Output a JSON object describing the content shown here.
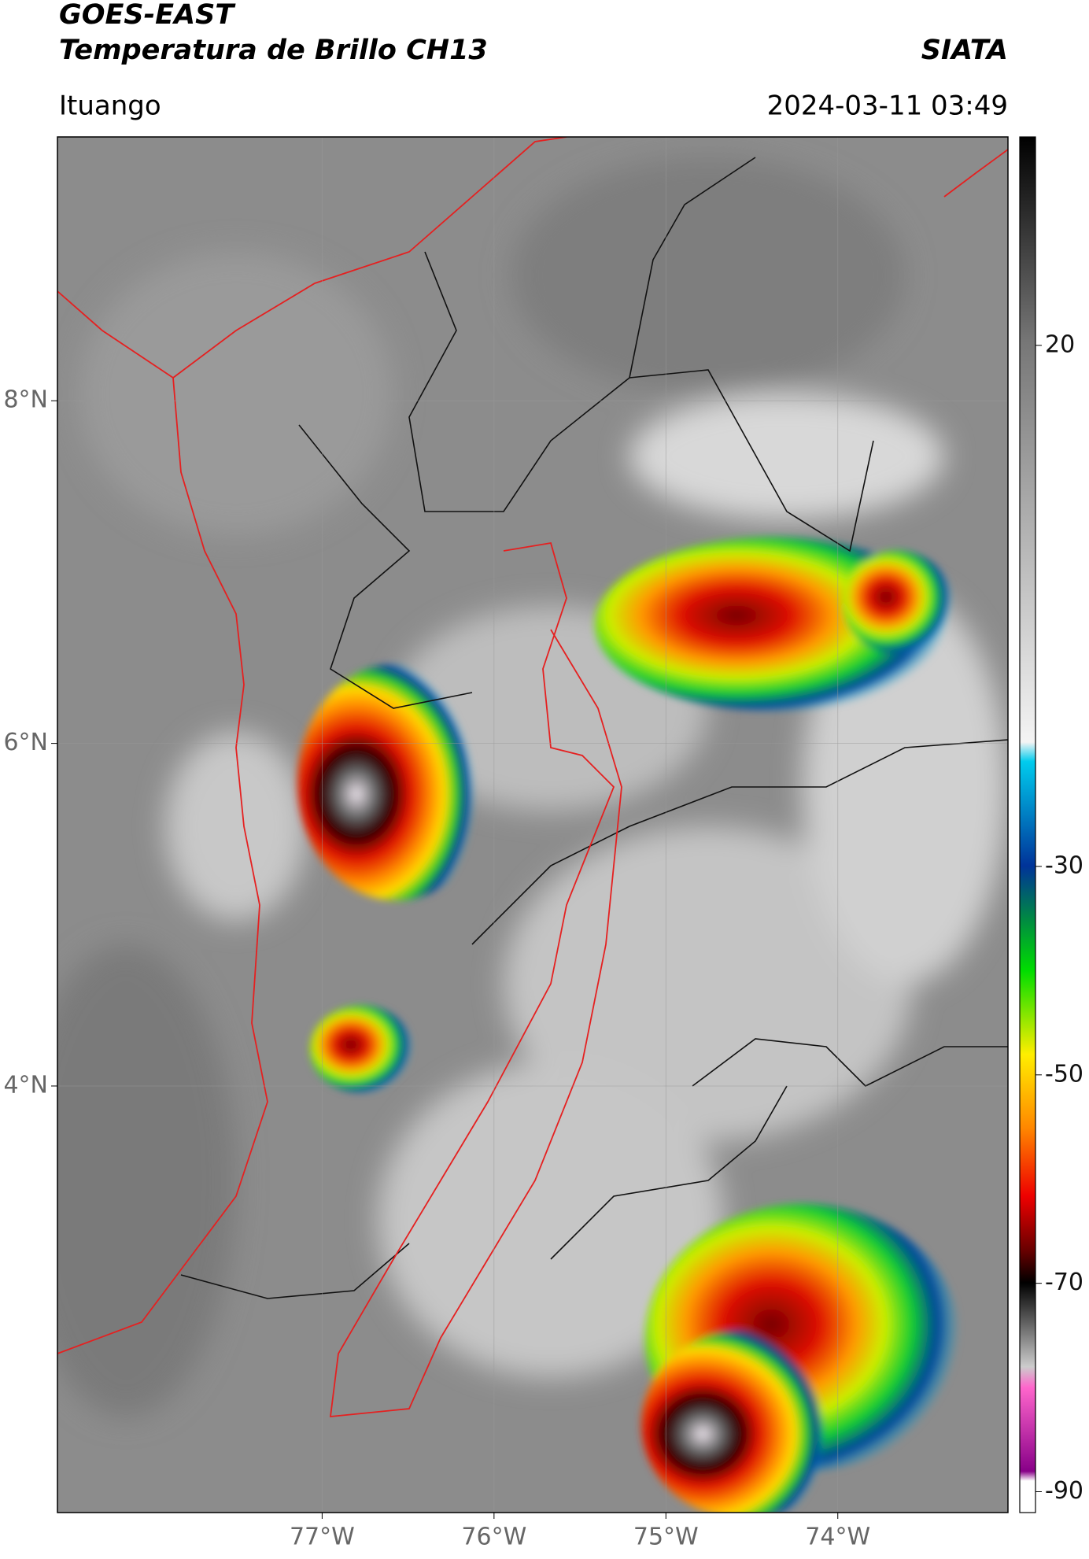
{
  "header": {
    "title": "GOES-EAST",
    "subtitle": "Temperatura de Brillo CH13",
    "source": "SIATA",
    "location": "Ituango",
    "datetime": "2024-03-11 03:49"
  },
  "map": {
    "xlim": [
      -78.54,
      -73.01
    ],
    "ylim": [
      1.51,
      9.54
    ],
    "xticks": [
      {
        "value": -77,
        "label": "77°W"
      },
      {
        "value": -76,
        "label": "76°W"
      },
      {
        "value": -75,
        "label": "75°W"
      },
      {
        "value": -74,
        "label": "74°W"
      }
    ],
    "yticks": [
      {
        "value": 8,
        "label": "8°N"
      },
      {
        "value": 6,
        "label": "6°N"
      },
      {
        "value": 4,
        "label": "4°N"
      }
    ],
    "grid": true
  },
  "colorbar": {
    "lim": [
      -92,
      40
    ],
    "ticks": [
      20,
      -30,
      -50,
      -70,
      -90
    ]
  }
}
